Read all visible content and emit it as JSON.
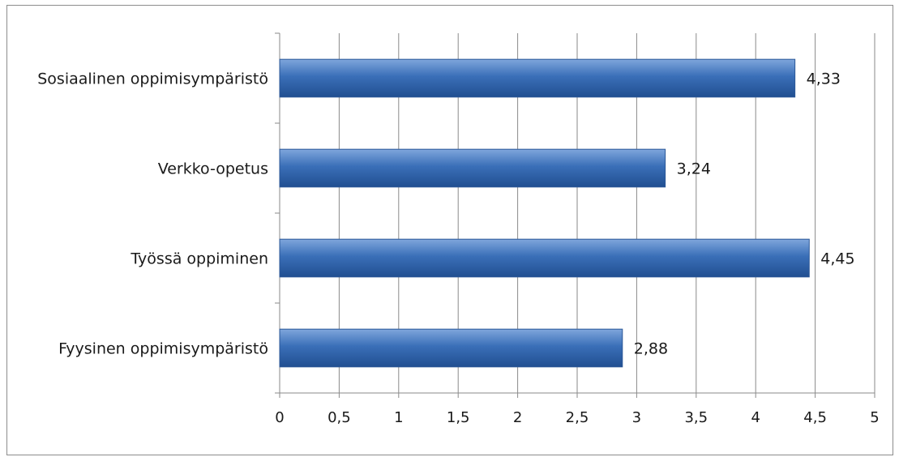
{
  "chart_data": {
    "type": "bar",
    "orientation": "horizontal",
    "title": "",
    "xlabel": "",
    "ylabel": "",
    "categories": [
      "Sosiaalinen oppimisympäristö",
      "Verkko-opetus",
      "Työssä oppiminen",
      "Fyysinen oppimisympäristö"
    ],
    "values": [
      4.33,
      3.24,
      4.45,
      2.88
    ],
    "data_labels": [
      "4,33",
      "3,24",
      "4,45",
      "2,88"
    ],
    "xlim": [
      0,
      5
    ],
    "x_ticks": [
      0,
      0.5,
      1,
      1.5,
      2,
      2.5,
      3,
      3.5,
      4,
      4.5,
      5
    ],
    "x_tick_labels": [
      "0",
      "0,5",
      "1",
      "1,5",
      "2",
      "2,5",
      "3",
      "3,5",
      "4",
      "4,5",
      "5"
    ],
    "grid": "vertical",
    "legend": "none",
    "bar_color": "#3a6fb8"
  }
}
